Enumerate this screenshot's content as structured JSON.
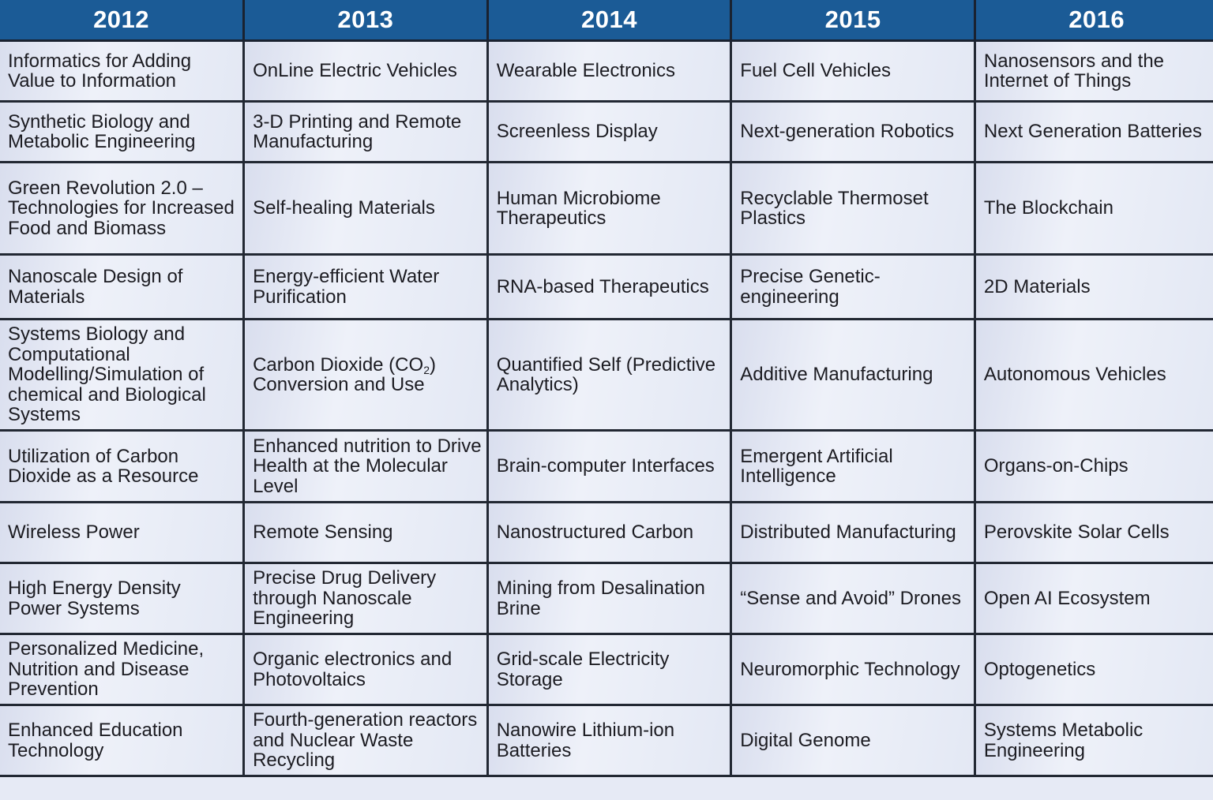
{
  "table": {
    "headers": [
      "2012",
      "2013",
      "2014",
      "2015",
      "2016"
    ],
    "rows": [
      [
        "Informatics for Adding Value to Information",
        "OnLine Electric Vehicles",
        "Wearable Electronics",
        "Fuel Cell Vehicles",
        "Nanosensors and the Internet of Things"
      ],
      [
        "Synthetic Biology and Metabolic Engineering",
        "3-D Printing and Remote Manufacturing",
        "Screenless Display",
        "Next-generation Robotics",
        "Next Generation Batteries"
      ],
      [
        "Green Revolution 2.0 – Technologies for Increased Food and Biomass",
        "Self-healing Materials",
        "Human Microbiome Therapeutics",
        "Recyclable Thermoset Plastics",
        "The Blockchain"
      ],
      [
        "Nanoscale Design of Materials",
        "Energy-efficient Water Purification",
        "RNA-based Therapeutics",
        "Precise Genetic-engineering",
        "2D Materials"
      ],
      [
        "Systems Biology and Computational Modelling/Simulation of chemical and Biological Systems",
        {
          "pre": "Carbon Dioxide (CO",
          "sub": "2",
          "post": ") Conversion and Use"
        },
        "Quantified Self (Predictive Analytics)",
        "Additive Manufacturing",
        "Autonomous Vehicles"
      ],
      [
        "Utilization of Carbon Dioxide as a Resource",
        "Enhanced nutrition to Drive Health at the Molecular Level",
        "Brain-computer Interfaces",
        "Emergent Artificial Intelligence",
        "Organs-on-Chips"
      ],
      [
        "Wireless Power",
        "Remote Sensing",
        "Nanostructured Carbon",
        "Distributed Manufacturing",
        "Perovskite Solar Cells"
      ],
      [
        "High Energy Density Power Systems",
        "Precise Drug Delivery through Nanoscale Engineering",
        "Mining from Desalination Brine",
        "“Sense and Avoid” Drones",
        "Open AI Ecosystem"
      ],
      [
        "Personalized Medicine, Nutrition and Disease Prevention",
        "Organic electronics and Photovoltaics",
        "Grid-scale Electricity Storage",
        "Neuromorphic Technology",
        "Optogenetics"
      ],
      [
        "Enhanced Education Technology",
        "Fourth-generation reactors and Nuclear Waste Recycling",
        "Nanowire Lithium-ion Batteries",
        "Digital Genome",
        "Systems Metabolic Engineering"
      ]
    ]
  },
  "colors": {
    "header_bg": "#1b5b96",
    "header_text": "#ffffff",
    "cell_bg": "#e6eaf5",
    "border": "#222833"
  }
}
